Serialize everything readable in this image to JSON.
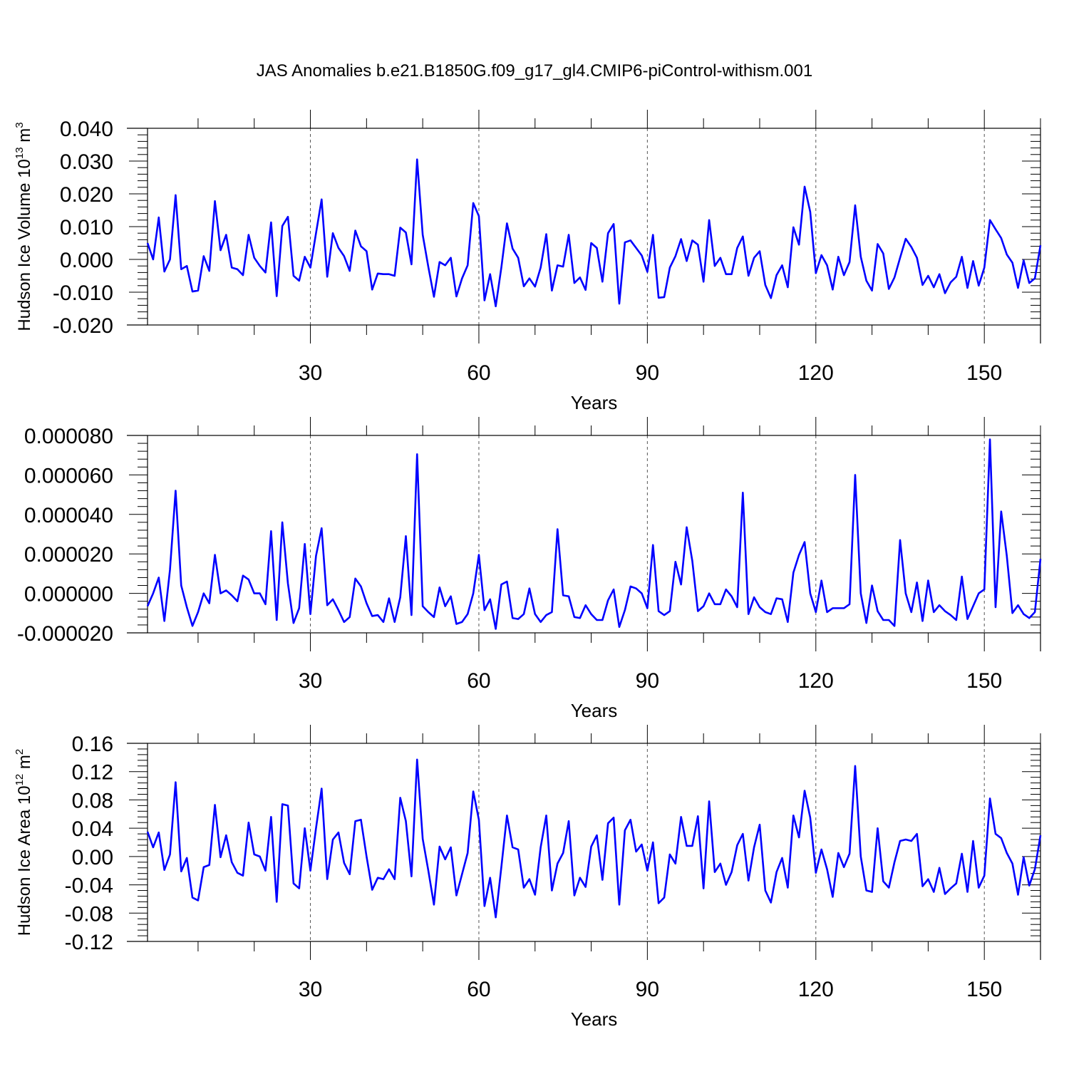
{
  "title": "JAS Anomalies b.e21.B1850G.f09_g17_gl4.CMIP6-piControl-withism.001",
  "colors": {
    "line": "#0000ff",
    "axis": "#000000",
    "grid": "#555555",
    "background": "#ffffff"
  },
  "chart_data": [
    {
      "type": "line",
      "ylabel_main": "Hudson Ice Volume 10",
      "ylabel_exp": "13",
      "ylabel_unit": " m",
      "ylabel_unit_exp": "3",
      "xlabel": "Years",
      "xlim": [
        1,
        160
      ],
      "ylim": [
        -0.02,
        0.04
      ],
      "yticks": [
        -0.02,
        -0.01,
        0.0,
        0.01,
        0.02,
        0.03,
        0.04
      ],
      "ytick_labels": [
        "-0.020",
        "-0.010",
        "0.000",
        "0.010",
        "0.020",
        "0.030",
        "0.040"
      ],
      "ytick_minor_step": 0.002,
      "xticks": [
        30,
        60,
        90,
        120,
        150
      ],
      "xtick_labels": [
        "30",
        "60",
        "90",
        "120",
        "150"
      ],
      "xtick_minor_step": 10,
      "grid": "dashed vertical at major x ticks",
      "values": [
        0.005,
        0.0,
        0.0128,
        -0.0037,
        0.0,
        0.0196,
        -0.003,
        -0.002,
        -0.0098,
        -0.0095,
        0.001,
        -0.0035,
        0.0178,
        0.0028,
        0.0075,
        -0.0025,
        -0.003,
        -0.0048,
        0.0075,
        0.0005,
        -0.002,
        -0.004,
        0.0113,
        -0.0112,
        0.0102,
        0.013,
        -0.005,
        -0.0065,
        0.0008,
        -0.0025,
        0.008,
        0.0183,
        -0.0053,
        0.008,
        0.0035,
        0.001,
        -0.0035,
        0.0088,
        0.004,
        0.0025,
        -0.0092,
        -0.0043,
        -0.0045,
        -0.0045,
        -0.005,
        0.0097,
        0.0082,
        -0.0015,
        0.0305,
        0.0075,
        -0.0023,
        -0.0114,
        -0.0008,
        -0.0018,
        0.0005,
        -0.0113,
        -0.0058,
        -0.0018,
        0.0172,
        0.0132,
        -0.0125,
        -0.0045,
        -0.0143,
        -0.0025,
        0.011,
        0.0033,
        0.0005,
        -0.0082,
        -0.0058,
        -0.0083,
        -0.0025,
        0.0077,
        -0.0095,
        -0.0018,
        -0.0022,
        0.0075,
        -0.0072,
        -0.0055,
        -0.0093,
        0.005,
        0.0035,
        -0.0068,
        0.008,
        0.0108,
        -0.0135,
        0.0052,
        0.0058,
        0.0035,
        0.0012,
        -0.0038,
        0.0075,
        -0.0117,
        -0.0115,
        -0.0025,
        0.001,
        0.0062,
        -0.0005,
        0.0058,
        0.0045,
        -0.0068,
        0.012,
        -0.002,
        0.0005,
        -0.0045,
        -0.0045,
        0.0035,
        0.007,
        -0.005,
        0.0005,
        0.0025,
        -0.0078,
        -0.0118,
        -0.0048,
        -0.0018,
        -0.0085,
        0.0098,
        0.0045,
        0.0222,
        0.0145,
        -0.0042,
        0.0013,
        -0.0018,
        -0.0092,
        0.0008,
        -0.0048,
        -0.0008,
        0.0165,
        0.0008,
        -0.0065,
        -0.0095,
        0.0047,
        0.0018,
        -0.009,
        -0.0055,
        0.0005,
        0.0063,
        0.0038,
        0.0005,
        -0.0078,
        -0.005,
        -0.0085,
        -0.0045,
        -0.0103,
        -0.007,
        -0.0053,
        0.0008,
        -0.0087,
        -0.0005,
        -0.008,
        -0.0025,
        0.012,
        0.0092,
        0.0065,
        0.0015,
        -0.001,
        -0.0087,
        -0.0003,
        -0.0072,
        -0.0058,
        0.0043
      ]
    },
    {
      "type": "line",
      "ylabel_main": "",
      "xlabel": "Years",
      "xlim": [
        1,
        160
      ],
      "ylim": [
        -2e-05,
        8e-05
      ],
      "yticks": [
        -2e-05,
        0.0,
        2e-05,
        4e-05,
        6e-05,
        8e-05
      ],
      "ytick_labels": [
        "-0.000020",
        "0.000000",
        "0.000020",
        "0.000040",
        "0.000060",
        "0.000080"
      ],
      "ytick_minor_step": 4e-06,
      "xticks": [
        30,
        60,
        90,
        120,
        150
      ],
      "xtick_labels": [
        "30",
        "60",
        "90",
        "120",
        "150"
      ],
      "xtick_minor_step": 10,
      "grid": "dashed vertical at major x ticks",
      "values": [
        -6.5e-06,
        0.0,
        8e-06,
        -1.4e-05,
        1.2e-05,
        5.2e-05,
        4e-06,
        -7e-06,
        -1.65e-05,
        -9.5e-06,
        0.0,
        -5e-06,
        1.95e-05,
        0.0,
        1.5e-06,
        -1e-06,
        -4e-06,
        9e-06,
        7e-06,
        0.0,
        0.0,
        -5.5e-06,
        3.15e-05,
        -1.35e-05,
        3.6e-05,
        5e-06,
        -1.5e-05,
        -7.5e-06,
        2.5e-05,
        -1.05e-05,
        1.9e-05,
        3.3e-05,
        -6e-06,
        -3e-06,
        -8.5e-06,
        -1.45e-05,
        -1.2e-05,
        7.5e-06,
        3.5e-06,
        -5e-06,
        -1.15e-05,
        -1.1e-05,
        -1.45e-05,
        -2.5e-06,
        -1.45e-05,
        -2e-06,
        2.9e-05,
        -1.1e-05,
        7.05e-05,
        -6.5e-06,
        -9.5e-06,
        -1.2e-05,
        3e-06,
        -6.5e-06,
        -1.5e-06,
        -1.55e-05,
        -1.45e-05,
        -1.05e-05,
        0.0,
        1.95e-05,
        -8.5e-06,
        -3e-06,
        -1.8e-05,
        4.5e-06,
        6e-06,
        -1.25e-05,
        -1.3e-05,
        -1.05e-05,
        2.5e-06,
        -1.05e-05,
        -1.45e-05,
        -1.1e-05,
        -9.5e-06,
        3.25e-05,
        -1e-06,
        -1.5e-06,
        -1.2e-05,
        -1.25e-05,
        -6e-06,
        -1.05e-05,
        -1.35e-05,
        -1.35e-05,
        -3.5e-06,
        2e-06,
        -1.7e-05,
        -8.5e-06,
        3.5e-06,
        2.5e-06,
        0.0,
        -7.5e-06,
        2.45e-05,
        -9e-06,
        -1.1e-05,
        -9e-06,
        1.6e-05,
        4.5e-06,
        3.35e-05,
        1.65e-05,
        -9e-06,
        -6.5e-06,
        0.0,
        -5.5e-06,
        -5.5e-06,
        2e-06,
        -1.5e-06,
        -7e-06,
        5.1e-05,
        -1.05e-05,
        -2e-06,
        -7e-06,
        -9.5e-06,
        -1.05e-05,
        -2.5e-06,
        -3e-06,
        -1.45e-05,
        1.05e-05,
        1.95e-05,
        2.6e-05,
        0.0,
        -9.5e-06,
        6.5e-06,
        -9.5e-06,
        -7.5e-06,
        -7.5e-06,
        -7.5e-06,
        -5.5e-06,
        6e-05,
        0.0,
        -1.5e-05,
        4e-06,
        -9e-06,
        -1.35e-05,
        -1.35e-05,
        -1.65e-05,
        2.7e-05,
        0.0,
        -9.5e-06,
        5.5e-06,
        -1.4e-05,
        6.5e-06,
        -9.5e-06,
        -6e-06,
        -9e-06,
        -1.1e-05,
        -1.35e-05,
        8.5e-06,
        -1.3e-05,
        -6.5e-06,
        0.0,
        2e-06,
        7.8e-05,
        -7e-06,
        4.15e-05,
        1.9e-05,
        -1e-05,
        -6e-06,
        -1.05e-05,
        -1.25e-05,
        -9.5e-06,
        1.75e-05
      ]
    },
    {
      "type": "line",
      "ylabel_main": "Hudson Ice Area 10",
      "ylabel_exp": "12",
      "ylabel_unit": " m",
      "ylabel_unit_exp": "2",
      "xlabel": "Years",
      "xlim": [
        1,
        160
      ],
      "ylim": [
        -0.12,
        0.16
      ],
      "yticks": [
        -0.12,
        -0.08,
        -0.04,
        0.0,
        0.04,
        0.08,
        0.12,
        0.16
      ],
      "ytick_labels": [
        "-0.12",
        "-0.08",
        "-0.04",
        "0.00",
        "0.04",
        "0.08",
        "0.12",
        "0.16"
      ],
      "ytick_minor_step": 0.008,
      "xticks": [
        30,
        60,
        90,
        120,
        150
      ],
      "xtick_labels": [
        "30",
        "60",
        "90",
        "120",
        "150"
      ],
      "xtick_minor_step": 10,
      "grid": "dashed vertical at major x ticks",
      "values": [
        0.035,
        0.013,
        0.034,
        -0.019,
        0.003,
        0.105,
        -0.021,
        -0.002,
        -0.058,
        -0.062,
        -0.015,
        -0.012,
        0.073,
        -0.001,
        0.03,
        -0.008,
        -0.023,
        -0.027,
        0.048,
        0.003,
        0.0,
        -0.02,
        0.056,
        -0.064,
        0.074,
        0.072,
        -0.038,
        -0.045,
        0.04,
        -0.02,
        0.04,
        0.096,
        -0.032,
        0.024,
        0.034,
        -0.009,
        -0.025,
        0.05,
        0.052,
        0.0,
        -0.047,
        -0.03,
        -0.032,
        -0.018,
        -0.032,
        0.083,
        0.05,
        -0.028,
        0.137,
        0.025,
        -0.02,
        -0.068,
        0.014,
        -0.004,
        0.013,
        -0.055,
        -0.025,
        0.005,
        0.092,
        0.052,
        -0.07,
        -0.03,
        -0.086,
        -0.015,
        0.058,
        0.013,
        0.01,
        -0.044,
        -0.032,
        -0.054,
        0.013,
        0.058,
        -0.048,
        -0.01,
        0.005,
        0.05,
        -0.055,
        -0.03,
        -0.043,
        0.014,
        0.03,
        -0.033,
        0.047,
        0.055,
        -0.068,
        0.037,
        0.052,
        0.007,
        0.017,
        -0.02,
        0.02,
        -0.066,
        -0.058,
        0.003,
        -0.01,
        0.056,
        0.015,
        0.015,
        0.057,
        -0.045,
        0.078,
        -0.022,
        -0.01,
        -0.04,
        -0.022,
        0.016,
        0.032,
        -0.034,
        0.013,
        0.045,
        -0.048,
        -0.065,
        -0.022,
        -0.002,
        -0.044,
        0.058,
        0.027,
        0.093,
        0.055,
        -0.023,
        0.01,
        -0.018,
        -0.057,
        0.005,
        -0.015,
        0.004,
        0.128,
        0.0,
        -0.048,
        -0.05,
        0.04,
        -0.035,
        -0.044,
        -0.008,
        0.022,
        0.024,
        0.022,
        0.032,
        -0.042,
        -0.032,
        -0.05,
        -0.016,
        -0.053,
        -0.045,
        -0.038,
        0.004,
        -0.05,
        0.022,
        -0.044,
        -0.027,
        0.082,
        0.032,
        0.026,
        0.005,
        -0.01,
        -0.054,
        -0.001,
        -0.041,
        -0.018,
        0.03
      ]
    }
  ]
}
